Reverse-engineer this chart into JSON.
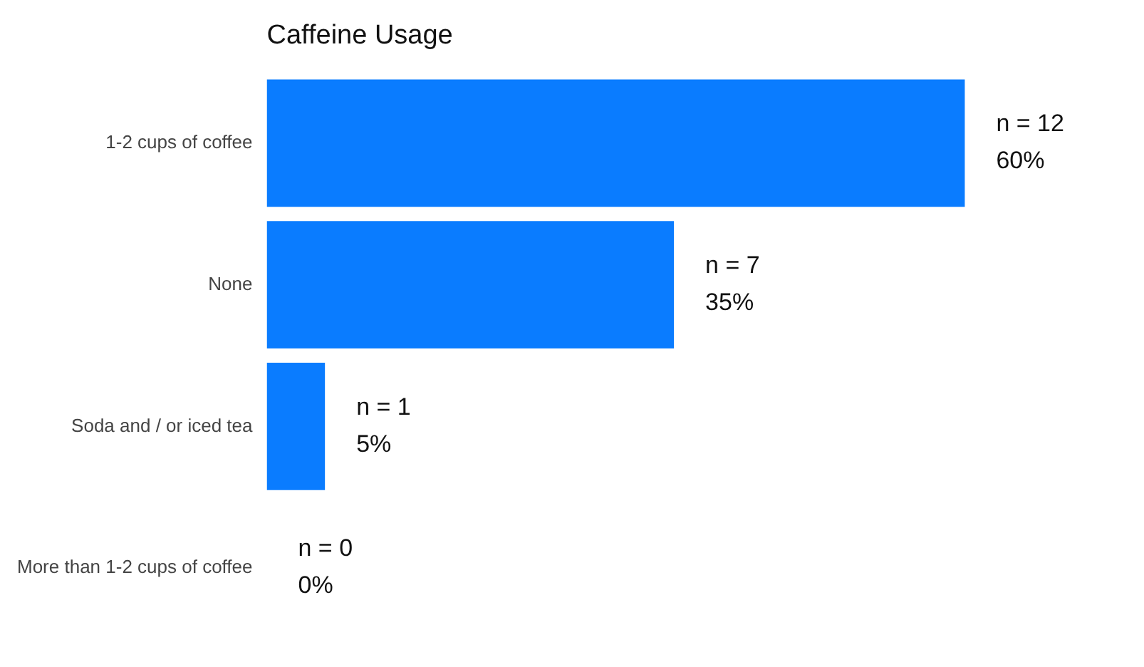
{
  "chart_data": {
    "type": "bar",
    "orientation": "horizontal",
    "title": "Caffeine Usage",
    "categories": [
      "1-2 cups of coffee",
      "None",
      "Soda and / or iced tea",
      "More than 1-2 cups of coffee"
    ],
    "values": [
      12,
      7,
      1,
      0
    ],
    "value_labels": [
      "n = 12\n60%",
      "n = 7\n35%",
      "n = 1\n5%",
      "n = 0\n0%"
    ],
    "color": "#0a7cff",
    "grid": false,
    "legend": false,
    "tick_labels": "y"
  }
}
